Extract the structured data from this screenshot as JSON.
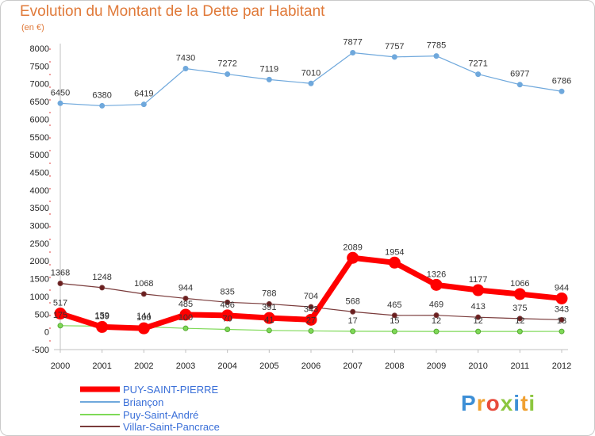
{
  "chart_data": {
    "type": "line",
    "title": "Evolution du Montant de la Dette par Habitant",
    "subtitle": "(en €)",
    "x": [
      "2000",
      "2001",
      "2002",
      "2003",
      "2004",
      "2005",
      "2006",
      "2007",
      "2008",
      "2009",
      "2010",
      "2011",
      "2012"
    ],
    "ylim": [
      -500,
      8000
    ],
    "yticks": [
      -500,
      0,
      500,
      1000,
      1500,
      2000,
      2500,
      3000,
      3500,
      4000,
      4500,
      5000,
      5500,
      6000,
      6500,
      7000,
      7500,
      8000
    ],
    "grid": false,
    "legend_placement": "bottom-left",
    "series": [
      {
        "name": "PUY-SAINT-PIERRE",
        "color": "#ff0000",
        "values": [
          517,
          139,
          100,
          485,
          466,
          391,
          343,
          2089,
          1954,
          1326,
          1177,
          1066,
          944
        ]
      },
      {
        "name": "Briançon",
        "color": "#6fa8dc",
        "values": [
          6450,
          6380,
          6419,
          7430,
          7272,
          7119,
          7010,
          7877,
          7757,
          7785,
          7271,
          6977,
          6786
        ]
      },
      {
        "name": "Puy-Saint-André",
        "color": "#7ed957",
        "values": [
          175,
          159,
          144,
          100,
          70,
          41,
          27,
          17,
          15,
          12,
          12,
          12,
          13
        ]
      },
      {
        "name": "Villar-Saint-Pancrace",
        "color": "#7a3b3b",
        "values": [
          1368,
          1248,
          1068,
          944,
          835,
          788,
          704,
          568,
          465,
          469,
          413,
          375,
          343
        ]
      }
    ]
  },
  "brand": {
    "text": "Proxiti",
    "letters": [
      {
        "ch": "P",
        "color": "#3d8fd6"
      },
      {
        "ch": "r",
        "color": "#f0a030"
      },
      {
        "ch": "o",
        "color": "#e84b3c"
      },
      {
        "ch": "x",
        "color": "#8cc63f"
      },
      {
        "ch": "i",
        "color": "#3d8fd6"
      },
      {
        "ch": "t",
        "color": "#f0a030"
      },
      {
        "ch": "i",
        "color": "#8cc63f"
      }
    ]
  }
}
